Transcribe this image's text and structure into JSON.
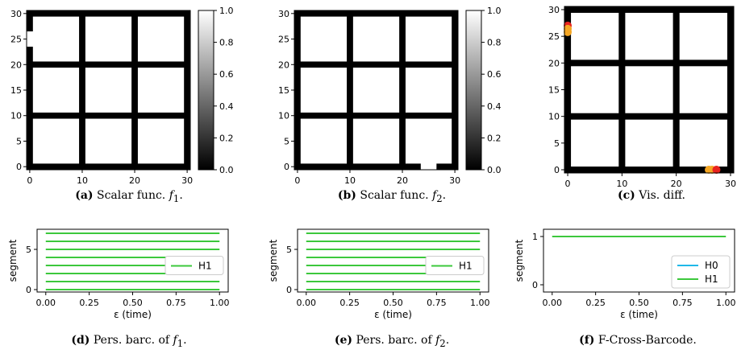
{
  "captions": [
    {
      "label": "(a)",
      "text": "Scalar func. ",
      "math": "f",
      "sub": "1",
      "end": "."
    },
    {
      "label": "(b)",
      "text": "Scalar func. ",
      "math": "f",
      "sub": "2",
      "end": "."
    },
    {
      "label": "(c)",
      "text": "Vis. diff.",
      "math": "",
      "sub": "",
      "end": ""
    },
    {
      "label": "(d)",
      "text": "Pers. barc. of ",
      "math": "f",
      "sub": "1",
      "end": "."
    },
    {
      "label": "(e)",
      "text": "Pers. barc. of ",
      "math": "f",
      "sub": "2",
      "end": "."
    },
    {
      "label": "(f)",
      "text": "F-Cross-Barcode.",
      "math": "",
      "sub": "",
      "end": ""
    }
  ],
  "colors": {
    "black": "#000000",
    "white": "#ffffff",
    "h0": "#1fb8e8",
    "h1": "#3cc83c",
    "red": "#e8231e",
    "orange": "#f5a623"
  },
  "chart_data": [
    {
      "id": "a",
      "type": "heatmap",
      "xlim": [
        0,
        30
      ],
      "ylim": [
        0,
        30
      ],
      "xticks": [
        "0",
        "10",
        "20",
        "30"
      ],
      "yticks": [
        "0",
        "5",
        "10",
        "15",
        "20",
        "25",
        "30"
      ],
      "grid_lines": [
        0,
        10,
        20,
        30
      ],
      "line_width": 1.2,
      "gaps": [
        {
          "line": "x=0",
          "from": 23.5,
          "to": 26.5
        }
      ],
      "colorbar": {
        "range": [
          0,
          1
        ],
        "ticks": [
          "0.0",
          "0.2",
          "0.4",
          "0.6",
          "0.8",
          "1.0"
        ]
      }
    },
    {
      "id": "b",
      "type": "heatmap",
      "xlim": [
        0,
        30
      ],
      "ylim": [
        0,
        30
      ],
      "xticks": [
        "0",
        "10",
        "20",
        "30"
      ],
      "yticks": [
        "0",
        "5",
        "10",
        "15",
        "20",
        "25",
        "30"
      ],
      "grid_lines": [
        0,
        10,
        20,
        30
      ],
      "line_width": 1.2,
      "gaps": [
        {
          "line": "y=0",
          "from": 23.5,
          "to": 26.5
        }
      ],
      "colorbar": {
        "range": [
          0,
          1
        ],
        "ticks": [
          "0.0",
          "0.2",
          "0.4",
          "0.6",
          "0.8",
          "1.0"
        ]
      }
    },
    {
      "id": "c",
      "type": "heatmap",
      "xlim": [
        0,
        30
      ],
      "ylim": [
        0,
        30
      ],
      "xticks": [
        "0",
        "10",
        "20",
        "30"
      ],
      "yticks": [
        "0",
        "5",
        "10",
        "15",
        "20",
        "25",
        "30"
      ],
      "grid_lines": [
        0,
        10,
        20,
        30
      ],
      "line_width": 1.2,
      "points": [
        {
          "x": 0,
          "y": 27.0,
          "color": "red"
        },
        {
          "x": 0,
          "y": 25.8,
          "color": "orange"
        },
        {
          "x": 0,
          "y": 26.4,
          "color": "orange"
        },
        {
          "x": 26.0,
          "y": 0,
          "color": "orange"
        },
        {
          "x": 26.6,
          "y": 0,
          "color": "orange"
        },
        {
          "x": 27.4,
          "y": 0,
          "color": "red"
        }
      ]
    },
    {
      "id": "d",
      "type": "barcode",
      "xlim": [
        -0.05,
        1.05
      ],
      "ylim": [
        -0.3,
        7.5
      ],
      "xticks": [
        "0.00",
        "0.25",
        "0.50",
        "0.75",
        "1.00"
      ],
      "yticks": [
        "0",
        "5"
      ],
      "xlabel": "ε (time)",
      "ylabel": "segment",
      "series": [
        {
          "name": "H1",
          "color": "h1",
          "bars": [
            {
              "segment": 0,
              "start": 0.0,
              "end": 1.0
            },
            {
              "segment": 1,
              "start": 0.0,
              "end": 1.0
            },
            {
              "segment": 2,
              "start": 0.0,
              "end": 1.0
            },
            {
              "segment": 3,
              "start": 0.0,
              "end": 1.0
            },
            {
              "segment": 4,
              "start": 0.0,
              "end": 1.0
            },
            {
              "segment": 5,
              "start": 0.0,
              "end": 1.0
            },
            {
              "segment": 6,
              "start": 0.0,
              "end": 1.0
            },
            {
              "segment": 7,
              "start": 0.0,
              "end": 1.0
            }
          ]
        }
      ],
      "legend": "center-right"
    },
    {
      "id": "e",
      "type": "barcode",
      "xlim": [
        -0.05,
        1.05
      ],
      "ylim": [
        -0.3,
        7.5
      ],
      "xticks": [
        "0.00",
        "0.25",
        "0.50",
        "0.75",
        "1.00"
      ],
      "yticks": [
        "0",
        "5"
      ],
      "xlabel": "ε (time)",
      "ylabel": "segment",
      "series": [
        {
          "name": "H1",
          "color": "h1",
          "bars": [
            {
              "segment": 0,
              "start": 0.0,
              "end": 1.0
            },
            {
              "segment": 1,
              "start": 0.0,
              "end": 1.0
            },
            {
              "segment": 2,
              "start": 0.0,
              "end": 1.0
            },
            {
              "segment": 3,
              "start": 0.0,
              "end": 1.0
            },
            {
              "segment": 4,
              "start": 0.0,
              "end": 1.0
            },
            {
              "segment": 5,
              "start": 0.0,
              "end": 1.0
            },
            {
              "segment": 6,
              "start": 0.0,
              "end": 1.0
            },
            {
              "segment": 7,
              "start": 0.0,
              "end": 1.0
            }
          ]
        }
      ],
      "legend": "center-right"
    },
    {
      "id": "f",
      "type": "barcode",
      "xlim": [
        -0.05,
        1.05
      ],
      "ylim": [
        -0.15,
        1.15
      ],
      "xticks": [
        "0.00",
        "0.25",
        "0.50",
        "0.75",
        "1.00"
      ],
      "yticks": [
        "0",
        "1"
      ],
      "xlabel": "ε (time)",
      "ylabel": "segment",
      "series": [
        {
          "name": "H0",
          "color": "h0",
          "bars": []
        },
        {
          "name": "H1",
          "color": "h1",
          "bars": [
            {
              "segment": 1,
              "start": 0.0,
              "end": 1.0
            }
          ]
        }
      ],
      "legend": "lower-right"
    }
  ]
}
